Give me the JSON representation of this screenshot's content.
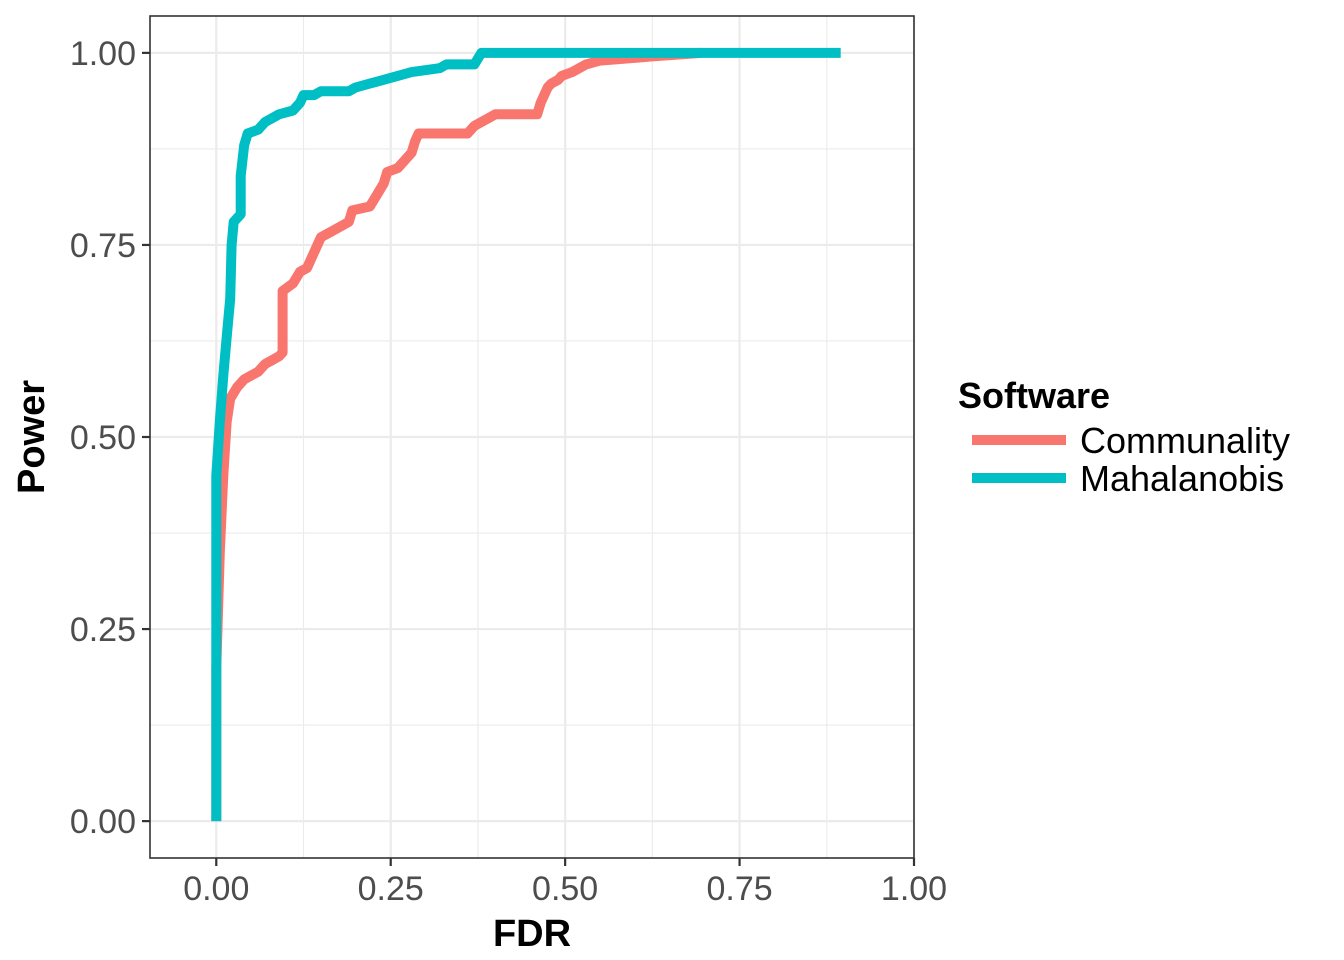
{
  "chart_data": {
    "type": "line",
    "xlabel": "FDR",
    "ylabel": "Power",
    "xlim": [
      -0.095,
      1.0
    ],
    "ylim": [
      -0.048,
      1.048
    ],
    "x_ticks": [
      "0.00",
      "0.25",
      "0.50",
      "0.75",
      "1.00"
    ],
    "y_ticks": [
      "0.00",
      "0.25",
      "0.50",
      "0.75",
      "1.00"
    ],
    "grid": true,
    "legend": {
      "title": "Software",
      "position": "right"
    },
    "series": [
      {
        "name": "Communality",
        "color": "#F8766D",
        "points": [
          [
            0.0,
            0.0
          ],
          [
            0.0,
            0.2
          ],
          [
            0.005,
            0.35
          ],
          [
            0.01,
            0.45
          ],
          [
            0.015,
            0.52
          ],
          [
            0.02,
            0.55
          ],
          [
            0.03,
            0.565
          ],
          [
            0.04,
            0.575
          ],
          [
            0.05,
            0.58
          ],
          [
            0.06,
            0.585
          ],
          [
            0.07,
            0.595
          ],
          [
            0.08,
            0.6
          ],
          [
            0.09,
            0.605
          ],
          [
            0.095,
            0.61
          ],
          [
            0.095,
            0.69
          ],
          [
            0.11,
            0.7
          ],
          [
            0.12,
            0.715
          ],
          [
            0.13,
            0.72
          ],
          [
            0.14,
            0.74
          ],
          [
            0.15,
            0.76
          ],
          [
            0.17,
            0.77
          ],
          [
            0.19,
            0.78
          ],
          [
            0.195,
            0.795
          ],
          [
            0.22,
            0.8
          ],
          [
            0.23,
            0.815
          ],
          [
            0.24,
            0.83
          ],
          [
            0.245,
            0.845
          ],
          [
            0.26,
            0.85
          ],
          [
            0.27,
            0.86
          ],
          [
            0.28,
            0.87
          ],
          [
            0.285,
            0.885
          ],
          [
            0.29,
            0.895
          ],
          [
            0.36,
            0.895
          ],
          [
            0.37,
            0.905
          ],
          [
            0.38,
            0.91
          ],
          [
            0.39,
            0.915
          ],
          [
            0.4,
            0.92
          ],
          [
            0.46,
            0.92
          ],
          [
            0.465,
            0.935
          ],
          [
            0.47,
            0.945
          ],
          [
            0.475,
            0.955
          ],
          [
            0.48,
            0.96
          ],
          [
            0.49,
            0.965
          ],
          [
            0.495,
            0.97
          ],
          [
            0.51,
            0.975
          ],
          [
            0.52,
            0.98
          ],
          [
            0.53,
            0.985
          ],
          [
            0.55,
            0.99
          ],
          [
            0.62,
            0.995
          ],
          [
            0.695,
            1.0
          ]
        ]
      },
      {
        "name": "Mahalanobis",
        "color": "#00BFC4",
        "points": [
          [
            0.0,
            0.0
          ],
          [
            0.0,
            0.45
          ],
          [
            0.005,
            0.52
          ],
          [
            0.01,
            0.58
          ],
          [
            0.015,
            0.63
          ],
          [
            0.02,
            0.68
          ],
          [
            0.022,
            0.75
          ],
          [
            0.025,
            0.78
          ],
          [
            0.035,
            0.79
          ],
          [
            0.035,
            0.84
          ],
          [
            0.04,
            0.88
          ],
          [
            0.045,
            0.895
          ],
          [
            0.06,
            0.9
          ],
          [
            0.07,
            0.91
          ],
          [
            0.08,
            0.915
          ],
          [
            0.09,
            0.92
          ],
          [
            0.11,
            0.925
          ],
          [
            0.12,
            0.935
          ],
          [
            0.125,
            0.945
          ],
          [
            0.14,
            0.945
          ],
          [
            0.15,
            0.95
          ],
          [
            0.19,
            0.95
          ],
          [
            0.2,
            0.955
          ],
          [
            0.22,
            0.96
          ],
          [
            0.24,
            0.965
          ],
          [
            0.26,
            0.97
          ],
          [
            0.28,
            0.975
          ],
          [
            0.32,
            0.98
          ],
          [
            0.33,
            0.985
          ],
          [
            0.37,
            0.985
          ],
          [
            0.38,
            1.0
          ],
          [
            0.895,
            1.0
          ]
        ]
      }
    ]
  }
}
